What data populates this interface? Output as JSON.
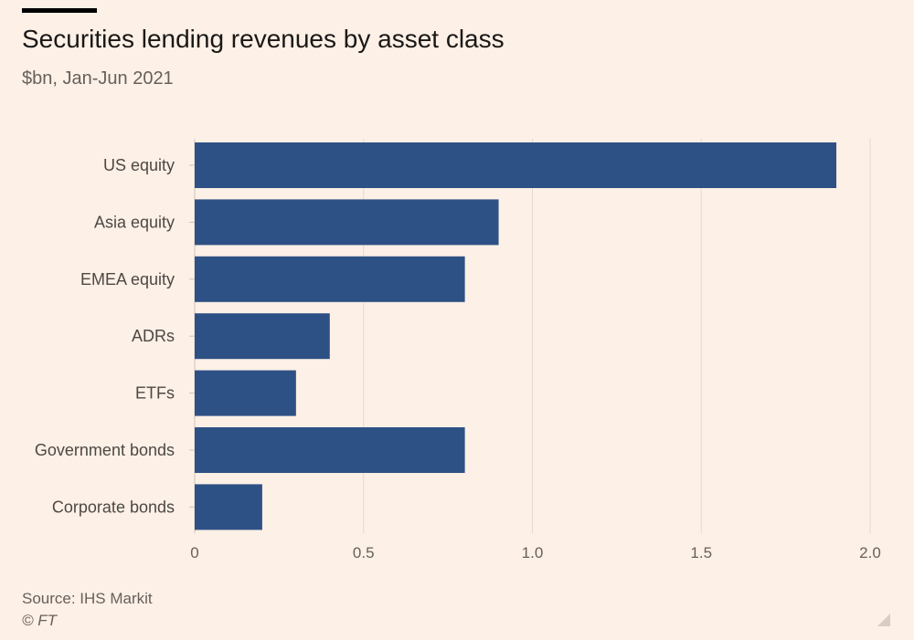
{
  "header": {
    "title": "Securities lending revenues by asset class",
    "subtitle": "$bn, Jan-Jun 2021"
  },
  "footer": {
    "source": "Source: IHS Markit",
    "copyright": "© FT"
  },
  "colors": {
    "background": "#fdf0e6",
    "bar": "#2e5185",
    "grid": "#e6d9ce",
    "axis_text": "#66605c",
    "label_text": "#4d4845"
  },
  "chart_data": {
    "type": "bar",
    "orientation": "horizontal",
    "categories": [
      "US equity",
      "Asia equity",
      "EMEA equity",
      "ADRs",
      "ETFs",
      "Government bonds",
      "Corporate bonds"
    ],
    "values": [
      1.9,
      0.9,
      0.8,
      0.4,
      0.3,
      0.8,
      0.2
    ],
    "title": "Securities lending revenues by asset class",
    "subtitle": "$bn, Jan-Jun 2021",
    "xlabel": "",
    "ylabel": "",
    "xlim": [
      0,
      2.0
    ],
    "xticks": [
      0,
      0.5,
      1.0,
      1.5,
      2.0
    ],
    "xtick_labels": [
      "0",
      "0.5",
      "1.0",
      "1.5",
      "2.0"
    ],
    "grid": true,
    "legend": "none"
  }
}
